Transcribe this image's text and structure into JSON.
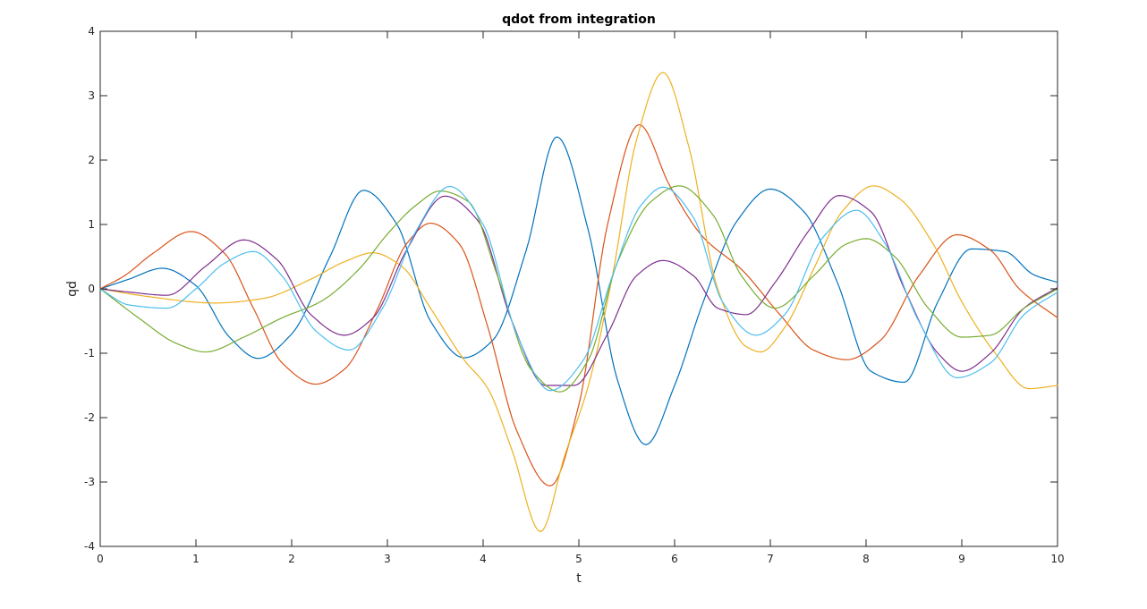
{
  "chart_data": {
    "type": "line",
    "title": "qdot from integration",
    "xlabel": "t",
    "ylabel": "qd",
    "xlim": [
      0,
      10
    ],
    "ylim": [
      -4,
      4
    ],
    "xticks": [
      0,
      1,
      2,
      3,
      4,
      5,
      6,
      7,
      8,
      9,
      10
    ],
    "yticks": [
      -4,
      -3,
      -2,
      -1,
      0,
      1,
      2,
      3,
      4
    ],
    "grid": false,
    "legend": "none",
    "series": [
      {
        "color": "#0072bd",
        "x": [
          0,
          0.3,
          0.65,
          1.0,
          1.35,
          1.65,
          2.0,
          2.4,
          2.75,
          3.1,
          3.45,
          3.8,
          4.1,
          4.45,
          4.77,
          5.1,
          5.4,
          5.7,
          6.0,
          6.3,
          6.65,
          7.0,
          7.35,
          7.7,
          8.05,
          8.4,
          8.75,
          9.1,
          9.45,
          9.75,
          10
        ],
        "y": [
          0,
          0.15,
          0.32,
          0.05,
          -0.75,
          -1.08,
          -0.7,
          0.5,
          1.53,
          1.0,
          -0.5,
          -1.07,
          -0.8,
          0.6,
          2.36,
          0.9,
          -1.4,
          -2.42,
          -1.5,
          -0.2,
          1.05,
          1.55,
          1.2,
          0.1,
          -1.28,
          -1.45,
          -0.2,
          0.62,
          0.58,
          0.22,
          0.1
        ]
      },
      {
        "color": "#d95319",
        "x": [
          0,
          0.25,
          0.55,
          0.95,
          1.3,
          1.6,
          1.9,
          2.25,
          2.55,
          2.9,
          3.2,
          3.45,
          3.75,
          4.05,
          4.35,
          4.7,
          5.0,
          5.3,
          5.63,
          5.95,
          6.3,
          6.7,
          7.1,
          7.45,
          7.8,
          8.15,
          8.55,
          8.95,
          9.3,
          9.6,
          10
        ],
        "y": [
          0,
          0.2,
          0.55,
          0.89,
          0.55,
          -0.3,
          -1.15,
          -1.48,
          -1.25,
          -0.3,
          0.7,
          1.02,
          0.7,
          -0.6,
          -2.2,
          -3.06,
          -1.8,
          1.0,
          2.55,
          1.6,
          0.8,
          0.3,
          -0.4,
          -0.95,
          -1.1,
          -0.8,
          0.2,
          0.84,
          0.6,
          0.0,
          -0.45
        ]
      },
      {
        "color": "#edb120",
        "x": [
          0,
          0.5,
          1.2,
          1.7,
          2.2,
          2.55,
          2.85,
          3.15,
          3.45,
          3.8,
          4.05,
          4.3,
          4.6,
          4.85,
          5.1,
          5.35,
          5.6,
          5.88,
          6.15,
          6.45,
          6.75,
          6.9,
          7.15,
          7.45,
          7.75,
          8.08,
          8.35,
          8.7,
          9.0,
          9.35,
          9.7,
          10
        ],
        "y": [
          0,
          -0.12,
          -0.22,
          -0.15,
          0.15,
          0.42,
          0.56,
          0.35,
          -0.3,
          -1.1,
          -1.55,
          -2.5,
          -3.77,
          -2.6,
          -1.5,
          0.2,
          2.3,
          3.36,
          2.2,
          0.0,
          -0.9,
          -0.98,
          -0.6,
          0.3,
          1.2,
          1.6,
          1.4,
          0.7,
          -0.2,
          -1.0,
          -1.55,
          -1.5
        ]
      },
      {
        "color": "#7e2f8e",
        "x": [
          0,
          0.3,
          0.7,
          1.1,
          1.5,
          1.85,
          2.2,
          2.55,
          2.85,
          3.2,
          3.6,
          3.95,
          4.3,
          4.65,
          4.95,
          5.3,
          5.6,
          5.88,
          6.2,
          6.45,
          6.75,
          7.05,
          7.4,
          7.72,
          8.05,
          8.4,
          8.75,
          9.0,
          9.3,
          9.65,
          10
        ],
        "y": [
          0,
          -0.05,
          -0.1,
          0.35,
          0.76,
          0.45,
          -0.4,
          -0.72,
          -0.45,
          0.6,
          1.44,
          1.05,
          -0.5,
          -1.5,
          -1.5,
          -0.7,
          0.2,
          0.44,
          0.2,
          -0.3,
          -0.4,
          0.1,
          0.9,
          1.45,
          1.2,
          0.0,
          -1.0,
          -1.28,
          -1.0,
          -0.3,
          0.02
        ]
      },
      {
        "color": "#77ac30",
        "x": [
          0,
          0.4,
          0.8,
          1.1,
          1.5,
          1.9,
          2.3,
          2.7,
          3.0,
          3.3,
          3.55,
          3.85,
          4.15,
          4.5,
          4.8,
          5.1,
          5.4,
          5.75,
          6.05,
          6.4,
          6.7,
          7.05,
          7.45,
          7.8,
          8.0,
          8.3,
          8.65,
          9.0,
          9.3,
          9.65,
          10
        ],
        "y": [
          0,
          -0.45,
          -0.85,
          -0.98,
          -0.75,
          -0.45,
          -0.2,
          0.3,
          0.85,
          1.3,
          1.52,
          1.35,
          0.2,
          -1.25,
          -1.6,
          -1.1,
          0.4,
          1.35,
          1.6,
          1.15,
          0.2,
          -0.3,
          0.2,
          0.7,
          0.78,
          0.5,
          -0.3,
          -0.75,
          -0.72,
          -0.3,
          0.0
        ]
      },
      {
        "color": "#4dbeee",
        "x": [
          0,
          0.3,
          0.7,
          1.0,
          1.3,
          1.6,
          1.9,
          2.25,
          2.6,
          2.95,
          3.3,
          3.65,
          4.0,
          4.35,
          4.7,
          5.05,
          5.35,
          5.65,
          5.88,
          6.2,
          6.5,
          6.85,
          7.15,
          7.55,
          7.9,
          8.2,
          8.55,
          8.95,
          9.3,
          9.65,
          10
        ],
        "y": [
          0,
          -0.25,
          -0.3,
          0.0,
          0.4,
          0.58,
          0.2,
          -0.65,
          -0.95,
          -0.3,
          0.9,
          1.59,
          1.0,
          -0.7,
          -1.58,
          -1.1,
          0.2,
          1.3,
          1.58,
          1.1,
          -0.2,
          -0.72,
          -0.4,
          0.8,
          1.22,
          0.7,
          -0.5,
          -1.38,
          -1.15,
          -0.4,
          -0.05
        ]
      }
    ]
  }
}
